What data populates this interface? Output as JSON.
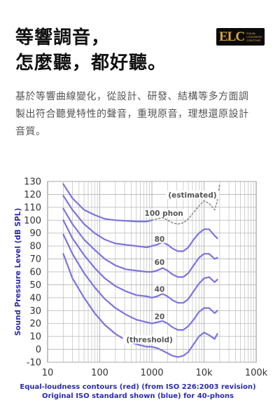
{
  "headline": {
    "line1": "等響調音，",
    "line2": "怎麼聽，都好聽。"
  },
  "badge": {
    "mark": "ELC",
    "text": "EQUAL\nLOUDNESS\nCONTOUR"
  },
  "description": {
    "line1": "基於等響曲線變化，從設計、研發、結構等多方面調",
    "line2": "製出符合聽覺特性的聲音，重現原音，理想還原設計",
    "line3": "音質。"
  },
  "colors": {
    "contour": "#7b74e0",
    "estimated": "#8c8c8c",
    "grid": "#b4b4b4"
  },
  "chart_data": {
    "type": "line",
    "x_scale": "log",
    "xlim": [
      10,
      100000
    ],
    "ylim": [
      -10,
      130
    ],
    "ylabel": "Sound Pressure Level (dB SPL)",
    "x_tick_labels": [
      "10",
      "100",
      "1000",
      "10k",
      "100k"
    ],
    "x_tick_values": [
      10,
      100,
      1000,
      10000,
      100000
    ],
    "y_tick_values": [
      130,
      120,
      110,
      100,
      90,
      80,
      70,
      60,
      50,
      40,
      30,
      20,
      10,
      0,
      -10
    ],
    "caption_line1": "Equal-loudness contours (red) (from ISO 226:2003 revision)",
    "caption_line2": "Original ISO standard shown (blue) for 40-phons",
    "labels": [
      {
        "text": "(estimated)",
        "x": 6000,
        "y": 118
      },
      {
        "text": "100 phon",
        "x": 1700,
        "y": 104
      },
      {
        "text": "80",
        "x": 1400,
        "y": 84
      },
      {
        "text": "60",
        "x": 1400,
        "y": 66
      },
      {
        "text": "40",
        "x": 1400,
        "y": 45
      },
      {
        "text": "20",
        "x": 1400,
        "y": 24
      },
      {
        "text": "(threshold)",
        "x": 900,
        "y": 6
      }
    ],
    "series": [
      {
        "phon": "threshold",
        "points": [
          [
            20,
            74
          ],
          [
            30,
            55
          ],
          [
            50,
            40
          ],
          [
            80,
            28
          ],
          [
            125,
            19
          ],
          [
            200,
            12
          ],
          [
            315,
            7
          ],
          [
            500,
            4
          ],
          [
            800,
            2
          ],
          [
            1000,
            2
          ],
          [
            1250,
            1
          ],
          [
            1600,
            -1
          ],
          [
            2000,
            -3
          ],
          [
            2500,
            -5
          ],
          [
            3150,
            -6
          ],
          [
            4000,
            -5
          ],
          [
            5000,
            -2
          ],
          [
            6300,
            4
          ],
          [
            8000,
            10
          ],
          [
            10000,
            13
          ],
          [
            12500,
            11
          ],
          [
            16000,
            8
          ],
          [
            18000,
            12
          ]
        ]
      },
      {
        "phon": "20",
        "points": [
          [
            20,
            89
          ],
          [
            30,
            74
          ],
          [
            50,
            59
          ],
          [
            80,
            48
          ],
          [
            125,
            39
          ],
          [
            200,
            32
          ],
          [
            315,
            27
          ],
          [
            500,
            23
          ],
          [
            800,
            21
          ],
          [
            1000,
            20
          ],
          [
            1250,
            21
          ],
          [
            1600,
            22
          ],
          [
            2000,
            20
          ],
          [
            2500,
            17
          ],
          [
            3150,
            15
          ],
          [
            4000,
            15
          ],
          [
            5000,
            18
          ],
          [
            6300,
            23
          ],
          [
            8000,
            29
          ],
          [
            10000,
            32
          ],
          [
            12500,
            32
          ],
          [
            16000,
            28
          ],
          [
            18000,
            30
          ]
        ]
      },
      {
        "phon": "40",
        "points": [
          [
            20,
            100
          ],
          [
            30,
            86
          ],
          [
            50,
            73
          ],
          [
            80,
            63
          ],
          [
            125,
            55
          ],
          [
            200,
            49
          ],
          [
            315,
            45
          ],
          [
            500,
            42
          ],
          [
            800,
            41
          ],
          [
            1000,
            40
          ],
          [
            1250,
            41
          ],
          [
            1600,
            43
          ],
          [
            2000,
            41
          ],
          [
            2500,
            38
          ],
          [
            3150,
            36
          ],
          [
            4000,
            36
          ],
          [
            5000,
            39
          ],
          [
            6300,
            45
          ],
          [
            8000,
            51
          ],
          [
            10000,
            55
          ],
          [
            12500,
            56
          ],
          [
            16000,
            52
          ],
          [
            18000,
            54
          ]
        ]
      },
      {
        "phon": "60",
        "points": [
          [
            20,
            109
          ],
          [
            30,
            97
          ],
          [
            50,
            85
          ],
          [
            80,
            77
          ],
          [
            125,
            70
          ],
          [
            200,
            65
          ],
          [
            315,
            62
          ],
          [
            500,
            61
          ],
          [
            800,
            60
          ],
          [
            1000,
            60
          ],
          [
            1250,
            61
          ],
          [
            1600,
            63
          ],
          [
            2000,
            61
          ],
          [
            2500,
            58
          ],
          [
            3150,
            56
          ],
          [
            4000,
            56
          ],
          [
            5000,
            59
          ],
          [
            6300,
            65
          ],
          [
            8000,
            71
          ],
          [
            10000,
            74
          ],
          [
            12500,
            74
          ],
          [
            16000,
            70
          ],
          [
            18000,
            71
          ]
        ]
      },
      {
        "phon": "80",
        "points": [
          [
            20,
            119
          ],
          [
            30,
            108
          ],
          [
            50,
            97
          ],
          [
            80,
            90
          ],
          [
            125,
            85
          ],
          [
            200,
            82
          ],
          [
            315,
            81
          ],
          [
            500,
            80
          ],
          [
            800,
            79
          ],
          [
            1000,
            80
          ],
          [
            1250,
            81
          ],
          [
            1600,
            83
          ],
          [
            2000,
            81
          ],
          [
            2500,
            78
          ],
          [
            3150,
            76
          ],
          [
            4000,
            76
          ],
          [
            5000,
            79
          ],
          [
            6300,
            85
          ],
          [
            8000,
            90
          ],
          [
            10000,
            93
          ],
          [
            12500,
            93
          ],
          [
            16000,
            88
          ],
          [
            18000,
            86
          ]
        ]
      },
      {
        "phon": "100",
        "points": [
          [
            20,
            128
          ],
          [
            30,
            117
          ],
          [
            50,
            108
          ],
          [
            80,
            104
          ],
          [
            125,
            101
          ],
          [
            200,
            100
          ],
          [
            315,
            99.5
          ],
          [
            500,
            99
          ],
          [
            800,
            99
          ],
          [
            1000,
            100
          ]
        ]
      },
      {
        "phon": "100 (estimated)",
        "dashed": true,
        "points": [
          [
            1000,
            100
          ],
          [
            1250,
            101
          ],
          [
            1600,
            102
          ],
          [
            2000,
            100
          ],
          [
            2500,
            98
          ],
          [
            3150,
            97
          ],
          [
            4000,
            98
          ],
          [
            5000,
            101
          ],
          [
            6300,
            106
          ],
          [
            8000,
            111
          ],
          [
            10000,
            115
          ],
          [
            12500,
            113
          ],
          [
            16000,
            108
          ],
          [
            18000,
            115
          ],
          [
            20000,
            128
          ]
        ]
      }
    ]
  }
}
